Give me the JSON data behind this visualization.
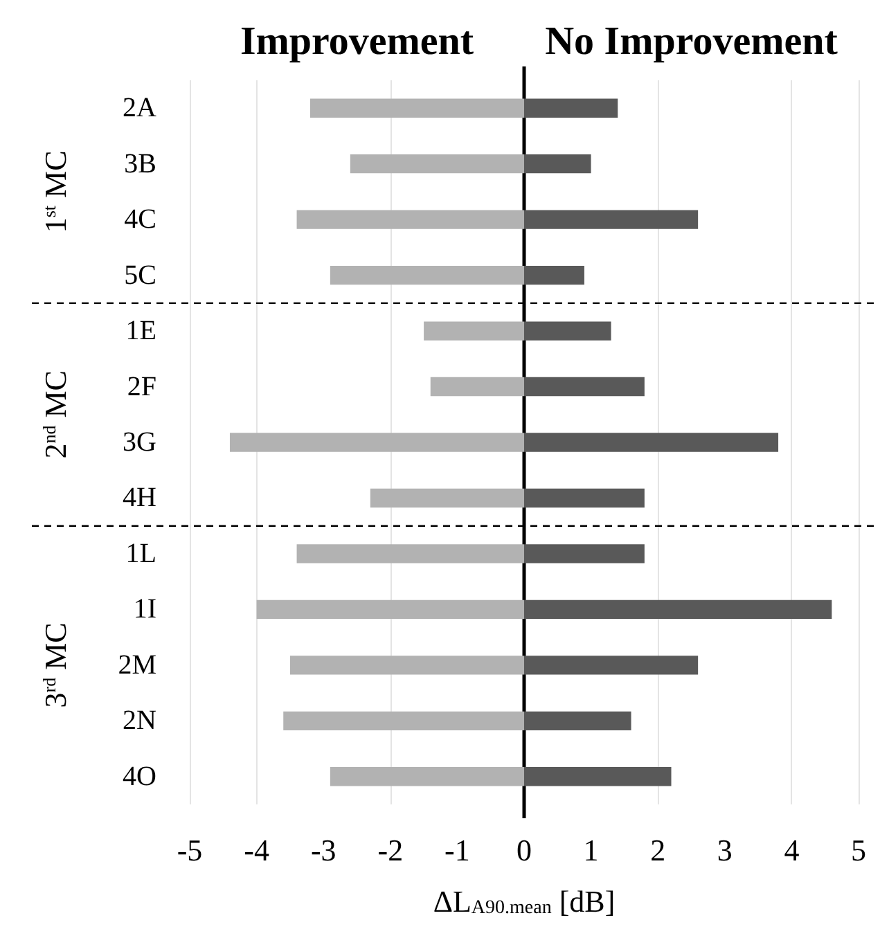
{
  "chart_data": {
    "type": "bar",
    "orientation": "horizontal",
    "stacked": true,
    "categories": [
      "2A",
      "3B",
      "4C",
      "5C",
      "1E",
      "2F",
      "3G",
      "4H",
      "1L",
      "1I",
      "2M",
      "2N",
      "4O"
    ],
    "series": [
      {
        "name": "Improvement",
        "color": "#b2b2b2",
        "values": [
          -3.2,
          -2.6,
          -3.4,
          -2.9,
          -1.5,
          -1.4,
          -4.4,
          -2.3,
          -3.4,
          -4.0,
          -3.5,
          -3.6,
          -2.9
        ]
      },
      {
        "name": "No Improvement",
        "color": "#595959",
        "values": [
          1.4,
          1.0,
          2.6,
          0.9,
          1.3,
          1.8,
          3.8,
          1.8,
          1.8,
          4.6,
          2.6,
          1.6,
          2.2
        ]
      }
    ],
    "xlim": [
      -5,
      5
    ],
    "xticks": [
      -5,
      -4,
      -3,
      -2,
      -1,
      0,
      1,
      2,
      3,
      4,
      5
    ],
    "xlabel": "ΔL$_{A90.mean}$ [dB]",
    "grid": "x",
    "annotations": [
      "1$^{st}$ MC",
      "2$^{nd}$ MC",
      "3$^{rd}$ MC"
    ]
  }
}
